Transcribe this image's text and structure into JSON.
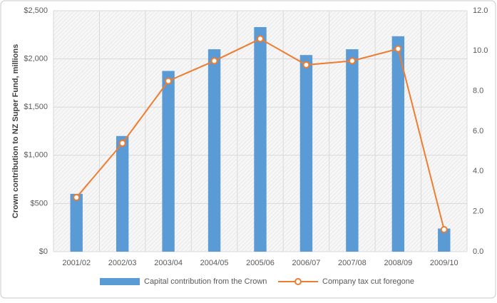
{
  "chart_data": {
    "type": "bar",
    "y_label": "Crown contribution  to NZ Super Fund, millions",
    "categories": [
      "2001/02",
      "2002/03",
      "2003/04",
      "2004/05",
      "2005/06",
      "2006/07",
      "2007/08",
      "2008/09",
      "2009/10"
    ],
    "series": [
      {
        "name": "Capital contribution from the Crown",
        "type": "bar",
        "color": "#5b9bd5",
        "values": [
          600,
          1200,
          1875,
          2100,
          2330,
          2040,
          2100,
          2235,
          240
        ]
      },
      {
        "name": "Company tax cut foregone",
        "type": "line",
        "axis": "y2",
        "color": "#ed7d31",
        "values": [
          2.7,
          5.4,
          8.5,
          9.5,
          10.6,
          9.3,
          9.5,
          10.1,
          1.1
        ]
      }
    ],
    "ylim": [
      0,
      2500
    ],
    "yticks": [
      {
        "value": 0,
        "label": "$0"
      },
      {
        "value": 500,
        "label": "$500"
      },
      {
        "value": 1000,
        "label": "$1,000"
      },
      {
        "value": 1500,
        "label": "$1,500"
      },
      {
        "value": 2000,
        "label": "$2,000"
      },
      {
        "value": 2500,
        "label": "$2,500"
      }
    ],
    "y2lim": [
      0,
      12
    ],
    "y2ticks": [
      {
        "value": 0,
        "label": "0.0"
      },
      {
        "value": 2,
        "label": "2.0"
      },
      {
        "value": 4,
        "label": "4.0"
      },
      {
        "value": 6,
        "label": "6.0"
      },
      {
        "value": 8,
        "label": "8.0"
      },
      {
        "value": 10,
        "label": "10.0"
      },
      {
        "value": 12,
        "label": "12.0"
      }
    ],
    "grid": true,
    "legend": "bottom"
  }
}
